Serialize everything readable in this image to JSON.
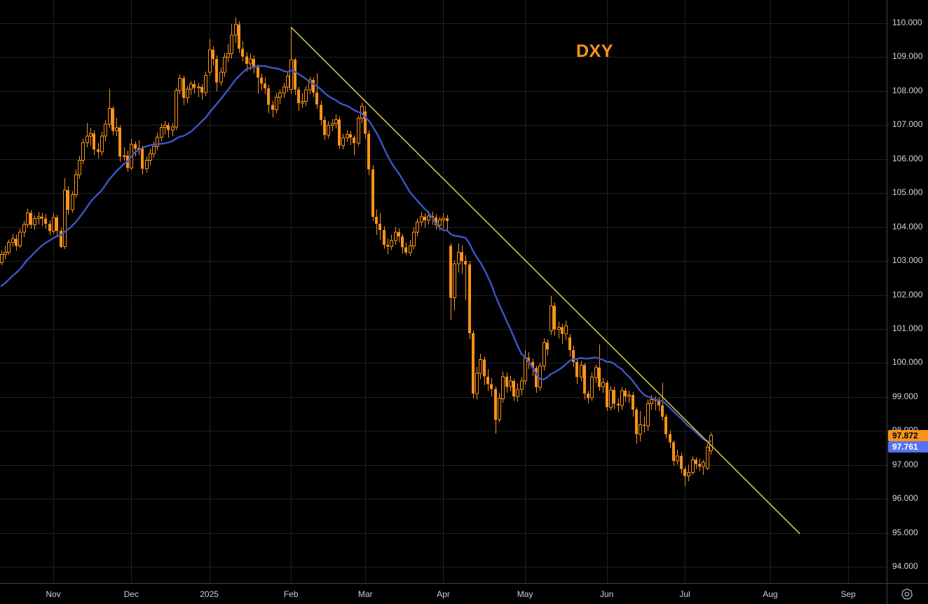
{
  "symbol_label": {
    "text": "DXY",
    "color": "#F7931A"
  },
  "colors": {
    "background": "#000000",
    "grid": "#202127",
    "candle": "#F7921B",
    "ma_line": "#3E55C7",
    "trendline": "#CBC63B",
    "axis_text": "#D2D4D9",
    "axis_border": "#3E414A",
    "icon": "#B8BBC2"
  },
  "price_scale": {
    "last_price_badge": {
      "value": 97.872,
      "label": "97.872",
      "bg": "#F7921B",
      "text_color": "#000000"
    },
    "ma_badge": {
      "value": 97.761,
      "label": "97.761",
      "bg": "#5572F0",
      "text_color": "#FFFFFF"
    }
  },
  "time_scale": {
    "icon": "heptagon-circle-icon"
  },
  "chart_data": {
    "type": "candlestick",
    "symbol": "DXY",
    "frequency": "daily",
    "approx_start": "2024-10-14",
    "approx_end": "2025-07-10",
    "grid": "on",
    "y_axis": {
      "min": 93.6,
      "max": 110.7,
      "gridline_step": 1.0,
      "labels": [
        {
          "price": 110,
          "label": "110.000"
        },
        {
          "price": 109,
          "label": "109.000"
        },
        {
          "price": 108,
          "label": "108.000"
        },
        {
          "price": 107,
          "label": "107.000"
        },
        {
          "price": 106,
          "label": "106.000"
        },
        {
          "price": 105,
          "label": "105.000"
        },
        {
          "price": 104,
          "label": "104.000"
        },
        {
          "price": 103,
          "label": "103.000"
        },
        {
          "price": 102,
          "label": "102.000"
        },
        {
          "price": 101,
          "label": "101.000"
        },
        {
          "price": 100,
          "label": "100.000"
        },
        {
          "price": 99,
          "label": "99.000"
        },
        {
          "price": 98,
          "label": "98.000"
        },
        {
          "price": 97,
          "label": "97.000"
        },
        {
          "price": 96,
          "label": "96.000"
        },
        {
          "price": 95,
          "label": "95.000"
        },
        {
          "price": 94,
          "label": "94.000"
        }
      ]
    },
    "x_axis": {
      "ticks": [
        {
          "label": "Nov",
          "index": 14
        },
        {
          "label": "Dec",
          "index": 35
        },
        {
          "label": "2025",
          "index": 56
        },
        {
          "label": "Feb",
          "index": 78
        },
        {
          "label": "Mar",
          "index": 98
        },
        {
          "label": "Apr",
          "index": 119
        },
        {
          "label": "May",
          "index": 141
        },
        {
          "label": "Jun",
          "index": 163
        },
        {
          "label": "Jul",
          "index": 184
        },
        {
          "label": "Aug",
          "index": 207
        },
        {
          "label": "Sep",
          "index": 228
        }
      ]
    },
    "candles": [
      [
        102.95,
        103.32,
        102.88,
        103.2
      ],
      [
        103.2,
        103.45,
        103.05,
        103.26
      ],
      [
        103.26,
        103.63,
        103.18,
        103.55
      ],
      [
        103.55,
        103.8,
        103.42,
        103.65
      ],
      [
        103.65,
        103.78,
        103.3,
        103.45
      ],
      [
        103.45,
        103.95,
        103.38,
        103.85
      ],
      [
        103.85,
        104.18,
        103.7,
        104.08
      ],
      [
        104.08,
        104.54,
        103.98,
        104.42
      ],
      [
        104.42,
        104.5,
        103.95,
        104.06
      ],
      [
        104.06,
        104.34,
        103.92,
        104.25
      ],
      [
        104.25,
        104.45,
        104.08,
        104.3
      ],
      [
        104.3,
        104.42,
        104.02,
        104.25
      ],
      [
        104.25,
        104.38,
        103.95,
        104.1
      ],
      [
        104.1,
        104.2,
        103.75,
        103.88
      ],
      [
        103.88,
        104.4,
        103.8,
        104.28
      ],
      [
        104.28,
        104.35,
        103.72,
        103.89
      ],
      [
        103.89,
        103.98,
        103.37,
        103.42
      ],
      [
        103.42,
        105.44,
        103.35,
        105.09
      ],
      [
        105.09,
        105.2,
        104.35,
        104.51
      ],
      [
        104.51,
        105.06,
        104.42,
        104.95
      ],
      [
        104.95,
        105.7,
        104.86,
        105.54
      ],
      [
        105.54,
        106.1,
        105.42,
        105.96
      ],
      [
        105.96,
        106.6,
        105.85,
        106.48
      ],
      [
        106.48,
        107.06,
        106.35,
        106.68
      ],
      [
        106.68,
        106.92,
        106.4,
        106.75
      ],
      [
        106.75,
        106.85,
        106.12,
        106.28
      ],
      [
        106.28,
        106.48,
        106.02,
        106.21
      ],
      [
        106.21,
        106.8,
        106.1,
        106.68
      ],
      [
        106.68,
        107.15,
        106.52,
        107.03
      ],
      [
        107.03,
        108.07,
        106.92,
        107.49
      ],
      [
        107.49,
        107.55,
        106.7,
        106.83
      ],
      [
        106.83,
        107.2,
        106.68,
        106.92
      ],
      [
        106.92,
        107.0,
        105.92,
        106.08
      ],
      [
        106.08,
        106.35,
        105.95,
        106.1
      ],
      [
        106.1,
        106.25,
        105.62,
        105.74
      ],
      [
        105.74,
        106.6,
        105.68,
        106.44
      ],
      [
        106.44,
        106.52,
        106.08,
        106.3
      ],
      [
        106.3,
        106.55,
        106.12,
        106.32
      ],
      [
        106.32,
        106.4,
        105.55,
        105.72
      ],
      [
        105.72,
        106.08,
        105.6,
        105.96
      ],
      [
        105.96,
        106.3,
        105.82,
        106.16
      ],
      [
        106.16,
        106.52,
        106.05,
        106.38
      ],
      [
        106.38,
        106.78,
        106.25,
        106.65
      ],
      [
        106.65,
        107.05,
        106.52,
        106.93
      ],
      [
        106.93,
        107.12,
        106.72,
        107.0
      ],
      [
        107.0,
        107.08,
        106.62,
        106.85
      ],
      [
        106.85,
        107.06,
        106.68,
        106.94
      ],
      [
        106.94,
        108.1,
        106.85,
        108.02
      ],
      [
        108.02,
        108.48,
        107.9,
        108.38
      ],
      [
        108.38,
        108.45,
        107.58,
        107.8
      ],
      [
        107.8,
        108.15,
        107.65,
        108.06
      ],
      [
        108.06,
        108.3,
        107.88,
        108.2
      ],
      [
        108.2,
        108.32,
        107.92,
        108.1
      ],
      [
        108.1,
        108.25,
        107.82,
        108.12
      ],
      [
        108.12,
        108.2,
        107.75,
        107.96
      ],
      [
        107.96,
        108.58,
        107.85,
        108.46
      ],
      [
        108.56,
        109.54,
        108.45,
        109.22
      ],
      [
        109.22,
        109.32,
        108.75,
        108.95
      ],
      [
        108.95,
        109.05,
        108.0,
        108.26
      ],
      [
        108.26,
        108.7,
        108.15,
        108.55
      ],
      [
        108.55,
        109.12,
        108.42,
        109.0
      ],
      [
        109.0,
        109.38,
        108.85,
        109.1
      ],
      [
        109.1,
        109.97,
        108.95,
        109.65
      ],
      [
        109.65,
        110.17,
        109.42,
        109.96
      ],
      [
        109.96,
        110.05,
        109.12,
        109.25
      ],
      [
        109.25,
        109.46,
        108.88,
        109.02
      ],
      [
        109.02,
        109.14,
        108.58,
        108.8
      ],
      [
        108.8,
        109.1,
        108.62,
        108.95
      ],
      [
        108.95,
        109.05,
        108.52,
        108.7
      ],
      [
        108.7,
        108.78,
        107.92,
        108.4
      ],
      [
        108.4,
        108.52,
        108.02,
        108.22
      ],
      [
        108.22,
        108.4,
        107.9,
        108.08
      ],
      [
        108.08,
        108.18,
        107.35,
        107.6
      ],
      [
        107.6,
        107.72,
        107.22,
        107.45
      ],
      [
        107.45,
        107.95,
        107.35,
        107.82
      ],
      [
        107.82,
        108.05,
        107.62,
        107.95
      ],
      [
        107.95,
        108.25,
        107.8,
        108.12
      ],
      [
        108.12,
        108.55,
        107.98,
        108.44
      ],
      [
        108.05,
        109.88,
        107.92,
        108.93
      ],
      [
        108.93,
        108.98,
        107.88,
        108.05
      ],
      [
        108.05,
        108.12,
        107.42,
        107.65
      ],
      [
        107.65,
        107.95,
        107.5,
        107.7
      ],
      [
        107.7,
        108.15,
        107.55,
        108.04
      ],
      [
        108.04,
        108.42,
        107.9,
        108.33
      ],
      [
        108.33,
        108.4,
        107.82,
        107.96
      ],
      [
        107.96,
        108.52,
        107.48,
        107.6
      ],
      [
        107.6,
        107.72,
        107.0,
        107.15
      ],
      [
        107.15,
        107.25,
        106.56,
        106.71
      ],
      [
        106.71,
        107.12,
        106.6,
        107.0
      ],
      [
        107.0,
        107.18,
        106.82,
        107.05
      ],
      [
        107.05,
        107.32,
        106.9,
        107.16
      ],
      [
        107.16,
        107.25,
        106.3,
        106.4
      ],
      [
        106.4,
        106.75,
        106.28,
        106.62
      ],
      [
        106.62,
        106.85,
        106.5,
        106.73
      ],
      [
        106.73,
        106.82,
        106.42,
        106.63
      ],
      [
        106.63,
        106.7,
        106.12,
        106.47
      ],
      [
        106.47,
        107.28,
        106.4,
        107.2
      ],
      [
        107.2,
        107.66,
        107.05,
        107.55
      ],
      [
        107.4,
        107.56,
        106.6,
        106.75
      ],
      [
        106.75,
        106.85,
        105.52,
        105.7
      ],
      [
        105.7,
        105.82,
        104.18,
        104.3
      ],
      [
        104.3,
        104.52,
        103.76,
        104.1
      ],
      [
        104.1,
        104.4,
        103.62,
        103.91
      ],
      [
        103.91,
        104.02,
        103.36,
        103.48
      ],
      [
        103.48,
        103.66,
        103.2,
        103.42
      ],
      [
        103.42,
        103.78,
        103.32,
        103.6
      ],
      [
        103.6,
        104.0,
        103.48,
        103.85
      ],
      [
        103.85,
        103.96,
        103.55,
        103.72
      ],
      [
        103.72,
        103.8,
        103.22,
        103.4
      ],
      [
        103.4,
        103.55,
        103.18,
        103.25
      ],
      [
        103.25,
        103.62,
        103.15,
        103.45
      ],
      [
        103.45,
        104.0,
        103.34,
        103.85
      ],
      [
        103.85,
        104.25,
        103.72,
        104.15
      ],
      [
        104.15,
        104.45,
        104.02,
        104.3
      ],
      [
        104.3,
        104.4,
        103.98,
        104.2
      ],
      [
        104.2,
        104.48,
        104.08,
        104.32
      ],
      [
        104.32,
        104.46,
        104.06,
        104.28
      ],
      [
        104.28,
        104.38,
        103.92,
        104.05
      ],
      [
        104.05,
        104.3,
        103.9,
        104.21
      ],
      [
        104.21,
        104.4,
        103.96,
        104.26
      ],
      [
        104.26,
        104.35,
        103.9,
        104.18
      ],
      [
        103.45,
        103.52,
        101.26,
        101.92
      ],
      [
        101.92,
        103.02,
        101.55,
        102.92
      ],
      [
        102.92,
        103.52,
        102.66,
        103.26
      ],
      [
        103.26,
        103.46,
        102.62,
        103.0
      ],
      [
        103.0,
        103.18,
        101.86,
        102.9
      ],
      [
        102.9,
        103.0,
        100.7,
        100.87
      ],
      [
        100.87,
        100.95,
        98.95,
        99.1
      ],
      [
        99.1,
        99.88,
        98.92,
        99.7
      ],
      [
        99.7,
        100.28,
        99.52,
        100.1
      ],
      [
        100.1,
        100.18,
        99.35,
        99.6
      ],
      [
        99.6,
        99.82,
        99.17,
        99.38
      ],
      [
        99.38,
        99.55,
        99.02,
        99.23
      ],
      [
        99.23,
        99.32,
        97.92,
        98.33
      ],
      [
        98.33,
        99.12,
        98.25,
        98.95
      ],
      [
        98.95,
        99.75,
        98.82,
        99.6
      ],
      [
        99.6,
        99.72,
        99.12,
        99.3
      ],
      [
        99.3,
        99.62,
        99.16,
        99.47
      ],
      [
        99.47,
        99.54,
        98.88,
        99.02
      ],
      [
        99.02,
        99.4,
        98.86,
        99.22
      ],
      [
        99.22,
        99.58,
        99.05,
        99.47
      ],
      [
        99.47,
        100.38,
        99.36,
        100.15
      ],
      [
        100.15,
        100.32,
        99.82,
        100.03
      ],
      [
        100.03,
        100.12,
        99.62,
        99.85
      ],
      [
        99.85,
        99.92,
        99.12,
        99.28
      ],
      [
        99.28,
        100.02,
        99.18,
        99.9
      ],
      [
        99.9,
        100.72,
        99.78,
        100.6
      ],
      [
        100.6,
        100.7,
        100.22,
        100.4
      ],
      [
        100.95,
        101.97,
        100.82,
        101.68
      ],
      [
        101.68,
        101.78,
        100.8,
        100.99
      ],
      [
        100.99,
        101.22,
        100.72,
        101.05
      ],
      [
        101.05,
        101.15,
        100.55,
        100.85
      ],
      [
        100.85,
        101.25,
        100.68,
        101.09
      ],
      [
        100.75,
        100.85,
        100.18,
        100.38
      ],
      [
        100.38,
        100.5,
        99.88,
        100.03
      ],
      [
        100.03,
        100.12,
        99.38,
        99.58
      ],
      [
        99.58,
        100.06,
        99.46,
        99.94
      ],
      [
        99.94,
        100.0,
        98.92,
        99.1
      ],
      [
        99.1,
        99.18,
        98.8,
        98.97
      ],
      [
        98.97,
        99.72,
        98.88,
        99.58
      ],
      [
        99.58,
        99.95,
        99.42,
        99.86
      ],
      [
        99.86,
        100.54,
        99.18,
        99.3
      ],
      [
        99.3,
        99.56,
        99.12,
        99.42
      ],
      [
        99.42,
        99.48,
        98.58,
        98.7
      ],
      [
        98.7,
        99.32,
        98.6,
        99.2
      ],
      [
        99.2,
        99.3,
        98.65,
        98.8
      ],
      [
        98.8,
        98.96,
        98.55,
        98.75
      ],
      [
        98.75,
        99.3,
        98.62,
        99.18
      ],
      [
        99.18,
        99.26,
        98.85,
        99.02
      ],
      [
        99.02,
        99.18,
        98.82,
        99.06
      ],
      [
        99.06,
        99.15,
        98.42,
        98.62
      ],
      [
        98.62,
        98.7,
        97.62,
        97.9
      ],
      [
        97.9,
        98.58,
        97.68,
        98.18
      ],
      [
        98.18,
        98.42,
        97.95,
        98.15
      ],
      [
        98.15,
        98.92,
        98.02,
        98.8
      ],
      [
        98.8,
        99.06,
        98.62,
        98.92
      ],
      [
        98.92,
        99.02,
        98.6,
        98.88
      ],
      [
        98.88,
        99.0,
        98.58,
        98.75
      ],
      [
        98.75,
        99.42,
        98.3,
        98.42
      ],
      [
        98.42,
        98.5,
        97.78,
        97.9
      ],
      [
        97.9,
        98.02,
        97.5,
        97.66
      ],
      [
        97.66,
        97.72,
        96.98,
        97.12
      ],
      [
        97.12,
        97.45,
        97.0,
        97.26
      ],
      [
        97.26,
        97.35,
        96.75,
        96.88
      ],
      [
        96.88,
        96.95,
        96.37,
        96.67
      ],
      [
        96.67,
        97.0,
        96.52,
        96.78
      ],
      [
        96.78,
        97.25,
        96.7,
        97.15
      ],
      [
        97.15,
        97.22,
        96.88,
        97.02
      ],
      [
        97.02,
        97.18,
        96.82,
        96.95
      ],
      [
        96.95,
        97.15,
        96.7,
        97.08
      ],
      [
        96.9,
        97.62,
        96.85,
        97.52
      ],
      [
        97.42,
        97.95,
        97.3,
        97.87
      ]
    ],
    "overlays": {
      "ma": {
        "name": "MA",
        "window": 20,
        "color": "#3E55C7",
        "last_value": 97.761,
        "prehistory_closes": [
          101.55,
          101.7,
          101.45,
          101.52,
          101.6,
          101.75,
          101.35,
          101.6,
          101.92,
          101.98,
          102.15,
          102.3,
          102.48,
          102.69,
          102.73,
          102.85,
          102.93,
          103.0,
          103.05,
          103.12
        ]
      },
      "trendline": {
        "name": "descending-trendline",
        "color": "#CBC63B",
        "from": {
          "index": 78,
          "price": 109.88
        },
        "to": {
          "index": 215,
          "price": 94.97
        }
      }
    }
  }
}
